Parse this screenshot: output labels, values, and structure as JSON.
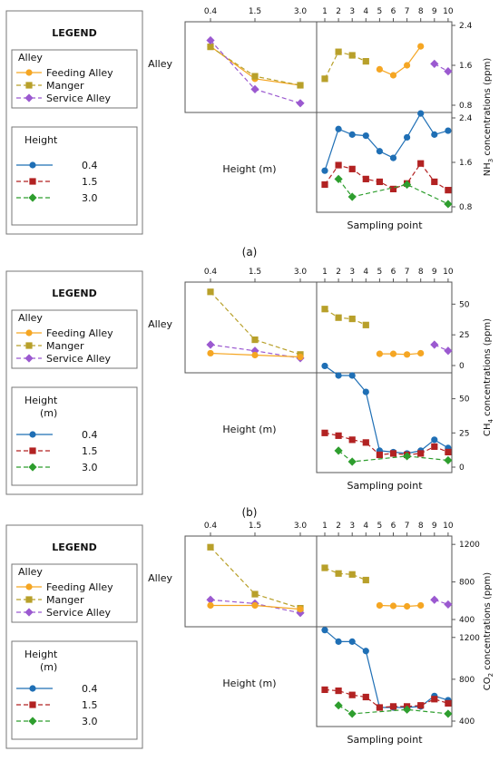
{
  "chart_data": [
    {
      "type": "line",
      "panel_label": "(a)",
      "ylabel_prefix": "NH",
      "ylabel_sub": "3",
      "ylabel_suffix": " concentrations (ppm)",
      "legend": {
        "title": "LEGEND",
        "alley_title": "Alley",
        "alley_items": [
          {
            "label": "Feeding Alley",
            "color": "#f5a623",
            "marker": "circle",
            "dash": "solid"
          },
          {
            "label": "Manger",
            "color": "#b8a02a",
            "marker": "square",
            "dash": "dashed"
          },
          {
            "label": "Service Alley",
            "color": "#9b59d0",
            "marker": "diamond",
            "dash": "dashed"
          }
        ],
        "height_title": "Height",
        "height_unit": "(m)",
        "height_items": [
          {
            "label": "0.4",
            "color": "#1f6fb5",
            "marker": "circle",
            "dash": "solid"
          },
          {
            "label": "1.5",
            "color": "#b22222",
            "marker": "square",
            "dash": "dashed"
          },
          {
            "label": "3.0",
            "color": "#2e9e2e",
            "marker": "diamond",
            "dash": "dashed"
          }
        ]
      },
      "row_label": "Alley",
      "col_label": "Height (m)",
      "xlabel_right": "Sampling point",
      "height_ticks": [
        "0.4",
        "1.5",
        "3.0"
      ],
      "sampling_ticks": [
        "1",
        "2",
        "3",
        "4",
        "5",
        "6",
        "7",
        "8",
        "9",
        "10"
      ],
      "yticks": [
        "0.8",
        "1.6",
        "2.4"
      ],
      "ylim": [
        0.8,
        2.4
      ],
      "interaction": [
        {
          "name": "Feeding Alley",
          "values": [
            1.98,
            1.33,
            1.2
          ]
        },
        {
          "name": "Manger",
          "values": [
            1.97,
            1.38,
            1.2
          ]
        },
        {
          "name": "Service Alley",
          "values": [
            2.1,
            1.12,
            0.84
          ]
        }
      ],
      "alley_series": [
        {
          "name": "Manger",
          "x": [
            1,
            2,
            3,
            4
          ],
          "values": [
            1.33,
            1.87,
            1.8,
            1.68
          ]
        },
        {
          "name": "Feeding Alley",
          "x": [
            5,
            6,
            7,
            8
          ],
          "values": [
            1.52,
            1.4,
            1.6,
            1.98
          ]
        },
        {
          "name": "Service Alley",
          "x": [
            9,
            10
          ],
          "values": [
            1.63,
            1.48
          ]
        }
      ],
      "height_series": [
        {
          "name": "0.4",
          "x": [
            1,
            2,
            3,
            4,
            5,
            6,
            7,
            8,
            9,
            10
          ],
          "values": [
            1.45,
            2.2,
            2.1,
            2.08,
            1.8,
            1.68,
            2.05,
            2.48,
            2.1,
            2.17
          ]
        },
        {
          "name": "1.5",
          "x": [
            1,
            2,
            3,
            4,
            5,
            6,
            7,
            8,
            9,
            10
          ],
          "values": [
            1.2,
            1.55,
            1.48,
            1.3,
            1.25,
            1.12,
            1.22,
            1.58,
            1.25,
            1.1
          ]
        },
        {
          "name": "3.0",
          "x": [
            2,
            3,
            7,
            10
          ],
          "values": [
            1.3,
            0.98,
            1.2,
            0.85
          ]
        }
      ]
    },
    {
      "type": "line",
      "panel_label": "(b)",
      "ylabel_prefix": "CH",
      "ylabel_sub": "4",
      "ylabel_suffix": " concentrations (ppm)",
      "legend": {
        "title": "LEGEND",
        "alley_title": "Alley",
        "alley_items": [
          {
            "label": "Feeding Alley",
            "color": "#f5a623",
            "marker": "circle",
            "dash": "solid"
          },
          {
            "label": "Manger",
            "color": "#b8a02a",
            "marker": "square",
            "dash": "dashed"
          },
          {
            "label": "Service Alley",
            "color": "#9b59d0",
            "marker": "diamond",
            "dash": "dashed"
          }
        ],
        "height_title": "Height",
        "height_unit": "(m)",
        "height_items": [
          {
            "label": "0.4",
            "color": "#1f6fb5",
            "marker": "circle",
            "dash": "solid"
          },
          {
            "label": "1.5",
            "color": "#b22222",
            "marker": "square",
            "dash": "dashed"
          },
          {
            "label": "3.0",
            "color": "#2e9e2e",
            "marker": "diamond",
            "dash": "dashed"
          }
        ]
      },
      "row_label": "Alley",
      "col_label": "Height (m)",
      "xlabel_right": "Sampling point",
      "height_ticks": [
        "0.4",
        "1.5",
        "3.0"
      ],
      "sampling_ticks": [
        "1",
        "2",
        "3",
        "4",
        "5",
        "6",
        "7",
        "8",
        "9",
        "10"
      ],
      "yticks": [
        "0",
        "25",
        "50"
      ],
      "ylim": [
        0,
        65
      ],
      "interaction": [
        {
          "name": "Manger",
          "values": [
            60,
            21,
            9
          ]
        },
        {
          "name": "Service Alley",
          "values": [
            17,
            12,
            6
          ]
        },
        {
          "name": "Feeding Alley",
          "values": [
            10,
            8.5,
            7
          ]
        }
      ],
      "alley_series": [
        {
          "name": "Manger",
          "x": [
            1,
            2,
            3,
            4
          ],
          "values": [
            46,
            39,
            38,
            33
          ]
        },
        {
          "name": "Feeding Alley",
          "x": [
            5,
            6,
            7,
            8
          ],
          "values": [
            9.5,
            9.5,
            9,
            10
          ]
        },
        {
          "name": "Service Alley",
          "x": [
            9,
            10
          ],
          "values": [
            17,
            12
          ]
        }
      ],
      "height_series": [
        {
          "name": "0.4",
          "x": [
            1,
            2,
            3,
            4,
            5,
            6,
            7,
            8,
            9,
            10
          ],
          "values": [
            74,
            67,
            67,
            55,
            12,
            11,
            10,
            12,
            20,
            14
          ]
        },
        {
          "name": "1.5",
          "x": [
            1,
            2,
            3,
            4,
            5,
            6,
            7,
            8,
            9,
            10
          ],
          "values": [
            25,
            23,
            20,
            18,
            9,
            10,
            9,
            10,
            15,
            11
          ]
        },
        {
          "name": "3.0",
          "x": [
            2,
            3,
            7,
            10
          ],
          "values": [
            12,
            4,
            8,
            5
          ]
        }
      ]
    },
    {
      "type": "line",
      "panel_label": "(c)",
      "ylabel_prefix": "CO",
      "ylabel_sub": "2",
      "ylabel_suffix": " concentrations (ppm)",
      "legend": {
        "title": "LEGEND",
        "alley_title": "Alley",
        "alley_items": [
          {
            "label": "Feeding Alley",
            "color": "#f5a623",
            "marker": "circle",
            "dash": "solid"
          },
          {
            "label": "Manger",
            "color": "#b8a02a",
            "marker": "square",
            "dash": "dashed"
          },
          {
            "label": "Service Alley",
            "color": "#9b59d0",
            "marker": "diamond",
            "dash": "dashed"
          }
        ],
        "height_title": "Height",
        "height_unit": "(m)",
        "height_items": [
          {
            "label": "0.4",
            "color": "#1f6fb5",
            "marker": "circle",
            "dash": "solid"
          },
          {
            "label": "1.5",
            "color": "#b22222",
            "marker": "square",
            "dash": "dashed"
          },
          {
            "label": "3.0",
            "color": "#2e9e2e",
            "marker": "diamond",
            "dash": "dashed"
          }
        ]
      },
      "row_label": "Alley",
      "col_label": "Height (m)",
      "xlabel_right": "Sampling point",
      "height_ticks": [
        "0.4",
        "1.5",
        "3.0"
      ],
      "sampling_ticks": [
        "1",
        "2",
        "3",
        "4",
        "5",
        "6",
        "7",
        "8",
        "9",
        "10"
      ],
      "yticks": [
        "400",
        "800",
        "1200"
      ],
      "ylim": [
        400,
        1250
      ],
      "interaction": [
        {
          "name": "Manger",
          "values": [
            1170,
            670,
            520
          ]
        },
        {
          "name": "Service Alley",
          "values": [
            610,
            570,
            470
          ]
        },
        {
          "name": "Feeding Alley",
          "values": [
            550,
            550,
            510
          ]
        }
      ],
      "alley_series": [
        {
          "name": "Manger",
          "x": [
            1,
            2,
            3,
            4
          ],
          "values": [
            950,
            890,
            880,
            820
          ]
        },
        {
          "name": "Feeding Alley",
          "x": [
            5,
            6,
            7,
            8
          ],
          "values": [
            550,
            545,
            540,
            550
          ]
        },
        {
          "name": "Service Alley",
          "x": [
            9,
            10
          ],
          "values": [
            610,
            560
          ]
        }
      ],
      "height_series": [
        {
          "name": "0.4",
          "x": [
            1,
            2,
            3,
            4,
            5,
            6,
            7,
            8,
            9,
            10
          ],
          "values": [
            1270,
            1160,
            1160,
            1070,
            530,
            530,
            530,
            540,
            640,
            600
          ]
        },
        {
          "name": "1.5",
          "x": [
            1,
            2,
            3,
            4,
            5,
            6,
            7,
            8,
            9,
            10
          ],
          "values": [
            700,
            690,
            650,
            630,
            530,
            540,
            540,
            550,
            610,
            570
          ]
        },
        {
          "name": "3.0",
          "x": [
            2,
            3,
            7,
            10
          ],
          "values": [
            550,
            470,
            510,
            470
          ]
        }
      ]
    }
  ]
}
